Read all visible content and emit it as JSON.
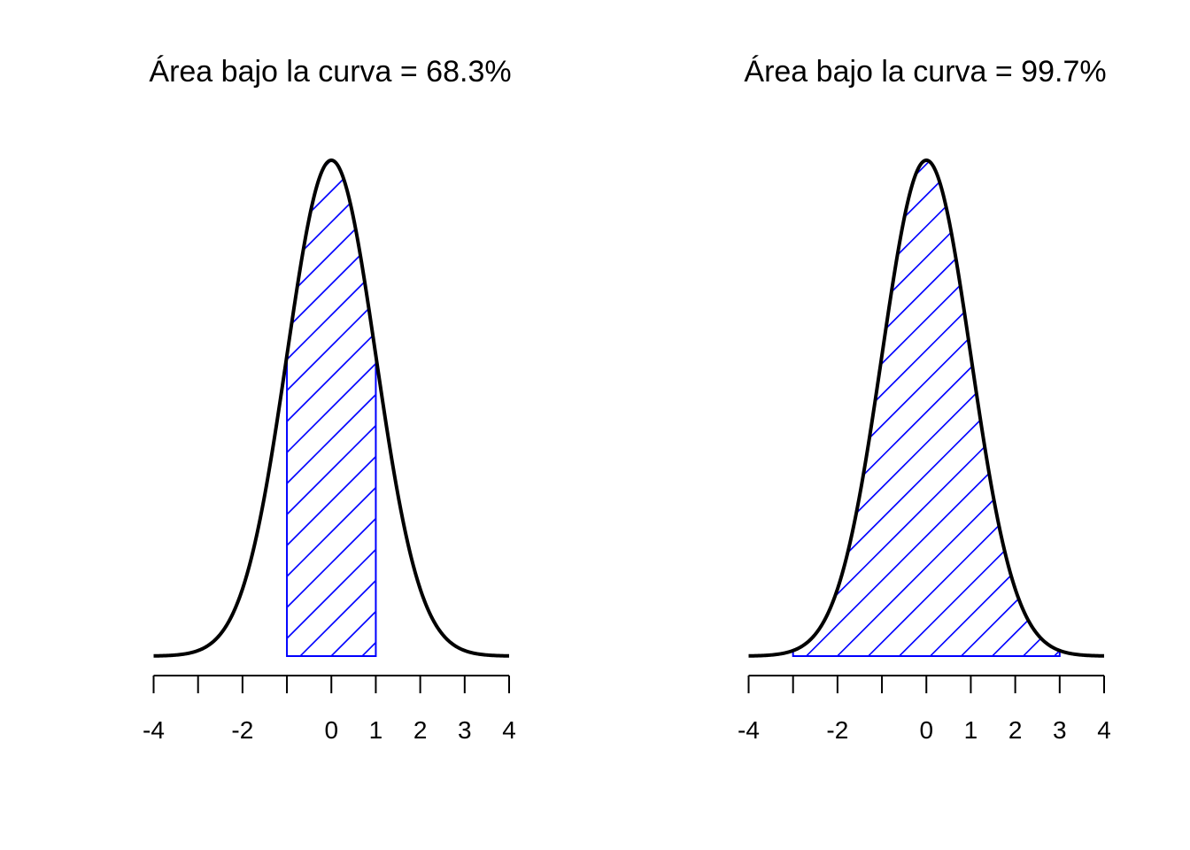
{
  "chart_data": [
    {
      "type": "area",
      "title": "Área bajo la curva = 68.3%",
      "distribution": "standard normal density",
      "xlim": [
        -4,
        4
      ],
      "shaded_interval": [
        -1,
        1
      ],
      "shaded_area_percent": 68.3,
      "x_ticks": [
        -4,
        -3,
        -2,
        -1,
        0,
        1,
        2,
        3,
        4
      ],
      "x_tick_labels": [
        "-4",
        "",
        "-2",
        "",
        "0",
        "1",
        "2",
        "3",
        "4"
      ],
      "hatch": "diagonal lines",
      "colors": {
        "curve": "#000000",
        "shade": "#0000ff"
      }
    },
    {
      "type": "area",
      "title": "Área bajo la curva = 99.7%",
      "distribution": "standard normal density",
      "xlim": [
        -4,
        4
      ],
      "shaded_interval": [
        -3,
        3
      ],
      "shaded_area_percent": 99.7,
      "x_ticks": [
        -4,
        -3,
        -2,
        -1,
        0,
        1,
        2,
        3,
        4
      ],
      "x_tick_labels": [
        "-4",
        "",
        "-2",
        "",
        "0",
        "1",
        "2",
        "3",
        "4"
      ],
      "hatch": "diagonal lines",
      "colors": {
        "curve": "#000000",
        "shade": "#0000ff"
      }
    }
  ]
}
